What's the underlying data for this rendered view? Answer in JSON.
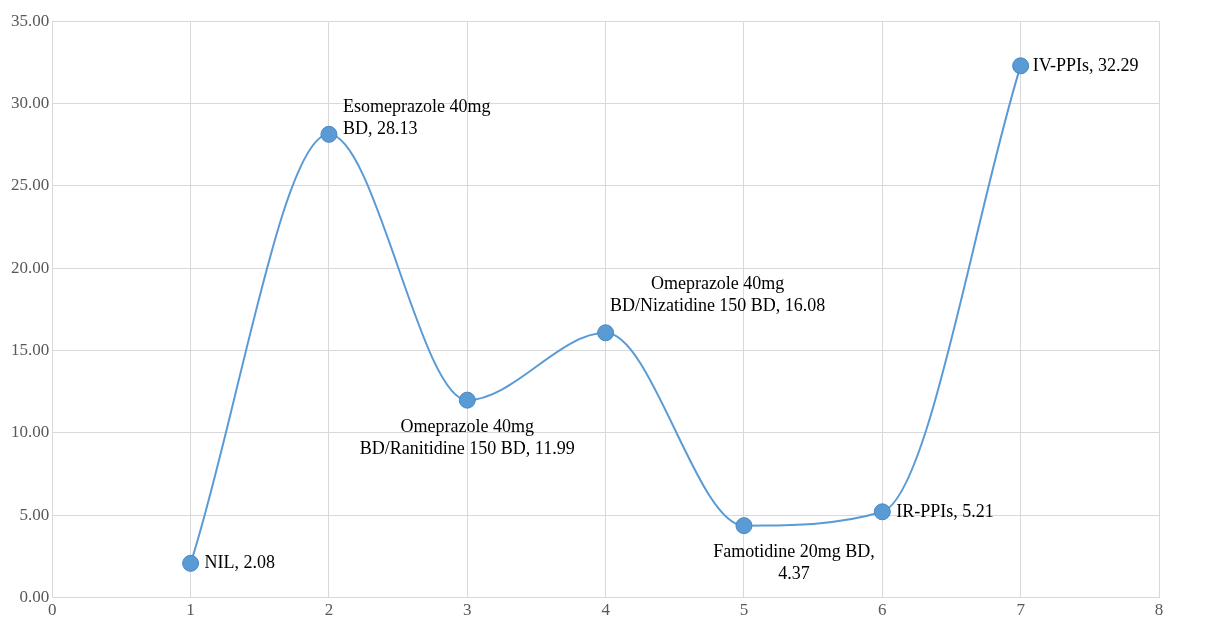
{
  "chart_data": {
    "type": "line",
    "x": [
      1,
      2,
      3,
      4,
      5,
      6,
      7
    ],
    "series": [
      {
        "color": "#5b9bd5",
        "values": [
          2.08,
          28.13,
          11.99,
          16.08,
          4.37,
          5.21,
          32.29
        ],
        "value_labels": [
          "NIL, 2.08",
          "Esomeprazole 40mg BD, 28.13",
          "Omeprazole 40mg BD/Ranitidine 150 BD, 11.99",
          "Omeprazole 40mg BD/Nizatidine 150 BD, 16.08",
          "Famotidine 20mg BD, 4.37",
          "IR-PPIs, 5.21",
          "IV-PPIs, 32.29"
        ]
      }
    ],
    "xlim": [
      0,
      8
    ],
    "xticks": [
      0,
      1,
      2,
      3,
      4,
      5,
      6,
      7,
      8
    ],
    "ylim": [
      0,
      35
    ],
    "yticks": [
      {
        "value": 0,
        "label": "0.00"
      },
      {
        "value": 5,
        "label": "5.00"
      },
      {
        "value": 10,
        "label": "10.00"
      },
      {
        "value": 15,
        "label": "15.00"
      },
      {
        "value": 20,
        "label": "20.00"
      },
      {
        "value": 25,
        "label": "25.00"
      },
      {
        "value": 30,
        "label": "30.00"
      },
      {
        "value": 35,
        "label": "35.00"
      }
    ],
    "grid": true,
    "legend": false,
    "marker": "circle",
    "line_style": "solid"
  }
}
